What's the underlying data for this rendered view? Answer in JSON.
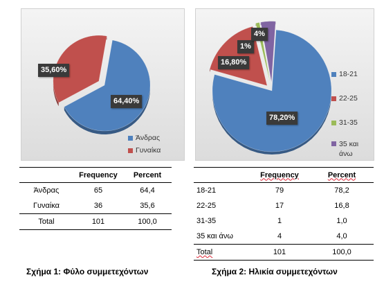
{
  "chart_data": [
    {
      "type": "pie",
      "categories": [
        "Άνδρας",
        "Γυναίκα"
      ],
      "values": [
        64.4,
        35.6
      ],
      "data_labels": [
        "64,40%",
        "35,60%"
      ],
      "colors": [
        "#4f81bd",
        "#c0504d"
      ],
      "legend_position": "bottom-right"
    },
    {
      "type": "pie",
      "categories": [
        "18-21",
        "22-25",
        "31-35",
        "35 και άνω"
      ],
      "values": [
        78.2,
        16.8,
        1,
        4
      ],
      "data_labels": [
        "78,20%",
        "16,80%",
        "1%",
        "4%"
      ],
      "colors": [
        "#4f81bd",
        "#c0504d",
        "#9bbb59",
        "#8064a2"
      ],
      "legend_position": "right"
    }
  ],
  "table1": {
    "headers": [
      "",
      "Frequency",
      "Percent"
    ],
    "rows": [
      [
        "Άνδρας",
        "65",
        "64,4"
      ],
      [
        "Γυναίκα",
        "36",
        "35,6"
      ],
      [
        "Total",
        "101",
        "100,0"
      ]
    ]
  },
  "table2": {
    "headers": [
      "",
      "Frequency",
      "Percent"
    ],
    "rows": [
      [
        "18-21",
        "79",
        "78,2"
      ],
      [
        "22-25",
        "17",
        "16,8"
      ],
      [
        "31-35",
        "1",
        "1,0"
      ],
      [
        "35 και άνω",
        "4",
        "4,0"
      ],
      [
        "Total",
        "101",
        "100,0"
      ]
    ]
  },
  "captions": {
    "fig1": "Σχήμα 1: Φύλο συμμετεχόντων",
    "fig2": "Σχήμα 2: Ηλικία συμμετεχόντων"
  }
}
